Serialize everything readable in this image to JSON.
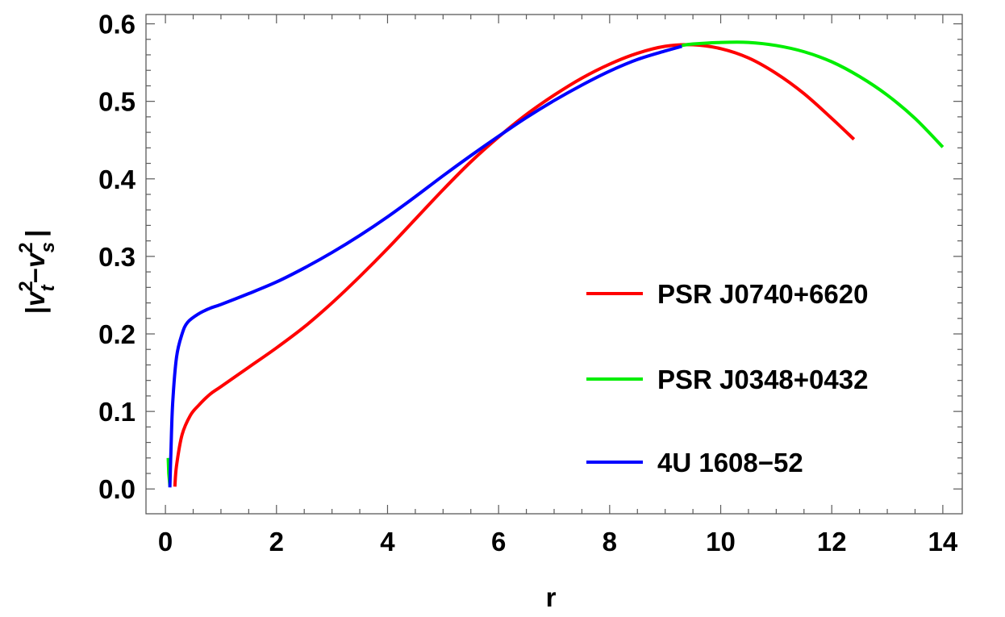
{
  "chart_data": {
    "type": "line",
    "xlabel": "r",
    "ylabel": {
      "base_v": "v",
      "sub_t": "t",
      "sub_s": "s",
      "pow": "2",
      "bar": "|",
      "minus": "−"
    },
    "xlim": [
      -0.35,
      14.35
    ],
    "ylim": [
      -0.032,
      0.612
    ],
    "x_ticks": [
      0,
      2,
      4,
      6,
      8,
      10,
      12,
      14
    ],
    "x_tick_labels": [
      "0",
      "2",
      "4",
      "6",
      "8",
      "10",
      "12",
      "14"
    ],
    "y_ticks": [
      0.0,
      0.1,
      0.2,
      0.3,
      0.4,
      0.5,
      0.6
    ],
    "y_tick_labels": [
      "0.0",
      "0.1",
      "0.2",
      "0.3",
      "0.4",
      "0.5",
      "0.6"
    ],
    "legend_position": "right",
    "grid": false,
    "series": [
      {
        "name": "PSR J0740+6620",
        "color": "#ff0000",
        "points": [
          [
            0.17,
            0.003
          ],
          [
            0.2,
            0.03
          ],
          [
            0.3,
            0.07
          ],
          [
            0.45,
            0.095
          ],
          [
            0.6,
            0.108
          ],
          [
            0.8,
            0.122
          ],
          [
            1.0,
            0.132
          ],
          [
            1.5,
            0.157
          ],
          [
            2.0,
            0.182
          ],
          [
            2.5,
            0.209
          ],
          [
            3.0,
            0.24
          ],
          [
            3.5,
            0.274
          ],
          [
            4.0,
            0.31
          ],
          [
            4.5,
            0.348
          ],
          [
            5.0,
            0.386
          ],
          [
            5.5,
            0.422
          ],
          [
            6.0,
            0.454
          ],
          [
            6.5,
            0.483
          ],
          [
            7.0,
            0.508
          ],
          [
            7.5,
            0.53
          ],
          [
            8.0,
            0.548
          ],
          [
            8.5,
            0.562
          ],
          [
            9.0,
            0.571
          ],
          [
            9.5,
            0.573
          ],
          [
            10.0,
            0.568
          ],
          [
            10.5,
            0.556
          ],
          [
            11.0,
            0.536
          ],
          [
            11.5,
            0.51
          ],
          [
            12.0,
            0.478
          ],
          [
            12.4,
            0.451
          ]
        ]
      },
      {
        "name": "PSR J0348+0432",
        "color": "#00ee00",
        "points": [
          [
            0.05,
            0.04
          ],
          [
            0.06,
            0.02
          ],
          [
            0.08,
            0.004
          ],
          [
            9.3,
            0.572
          ],
          [
            9.5,
            0.574
          ],
          [
            10.0,
            0.576
          ],
          [
            10.5,
            0.576
          ],
          [
            11.0,
            0.572
          ],
          [
            11.5,
            0.564
          ],
          [
            12.0,
            0.551
          ],
          [
            12.5,
            0.532
          ],
          [
            13.0,
            0.508
          ],
          [
            13.5,
            0.478
          ],
          [
            14.0,
            0.441
          ]
        ]
      },
      {
        "name": "4U 1608−52",
        "color": "#0000ff",
        "points": [
          [
            0.08,
            0.002
          ],
          [
            0.1,
            0.05
          ],
          [
            0.13,
            0.11
          ],
          [
            0.2,
            0.17
          ],
          [
            0.3,
            0.2
          ],
          [
            0.4,
            0.215
          ],
          [
            0.6,
            0.226
          ],
          [
            0.8,
            0.233
          ],
          [
            1.0,
            0.238
          ],
          [
            1.5,
            0.252
          ],
          [
            2.0,
            0.267
          ],
          [
            2.5,
            0.285
          ],
          [
            3.0,
            0.305
          ],
          [
            3.5,
            0.327
          ],
          [
            4.0,
            0.351
          ],
          [
            4.5,
            0.377
          ],
          [
            5.0,
            0.404
          ],
          [
            5.5,
            0.43
          ],
          [
            6.0,
            0.455
          ],
          [
            6.5,
            0.479
          ],
          [
            7.0,
            0.501
          ],
          [
            7.5,
            0.521
          ],
          [
            8.0,
            0.539
          ],
          [
            8.5,
            0.554
          ],
          [
            9.0,
            0.565
          ],
          [
            9.3,
            0.571
          ]
        ]
      }
    ]
  }
}
